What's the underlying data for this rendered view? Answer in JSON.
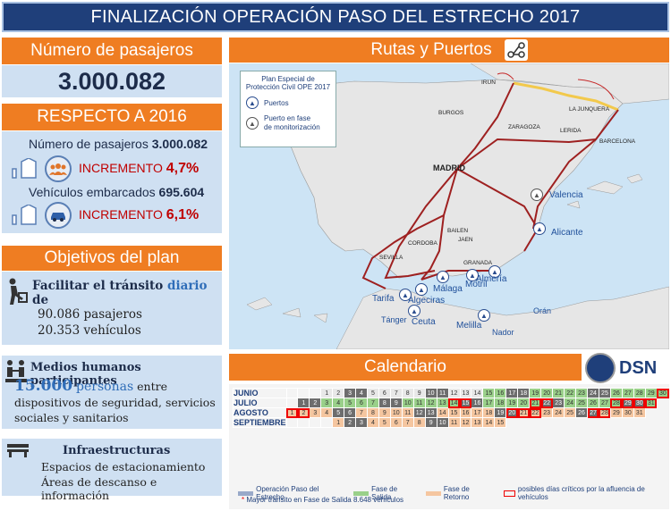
{
  "title": "FINALIZACIÓN OPERACIÓN PASO DEL ESTRECHO 2017",
  "passengers": {
    "header": "Número de pasajeros",
    "value": "3.000.082"
  },
  "respecto": {
    "header": "RESPECTO A 2016",
    "pasajeros_label": "Número de pasajeros",
    "pasajeros_value": "3.000.082",
    "pasajeros_inc_label": "INCREMENTO",
    "pasajeros_inc_value": "4,7%",
    "vehiculos_label": "Vehículos embarcados",
    "vehiculos_value": "695.604",
    "vehiculos_inc_label": "INCREMENTO",
    "vehiculos_inc_value": "6,1%"
  },
  "objetivos": {
    "header": "Objetivos del plan",
    "facilitar_a": "Facilitar el tránsito",
    "facilitar_b": "diario",
    "facilitar_c": "de",
    "line1": "90.086 pasajeros",
    "line2": "20.353 vehículos"
  },
  "medios": {
    "title": "Medios humanos participantes",
    "number": "15.000",
    "word": "personas",
    "rest1": "entre",
    "rest2": "dispositivos de seguridad, servicios",
    "rest3": "sociales y sanitarios"
  },
  "infra": {
    "title": "Infraestructuras",
    "line1": "Espacios de estacionamiento",
    "line2": "Áreas de descanso e información"
  },
  "map": {
    "header": "Rutas y Puertos",
    "legend_title1": "Plan Especial de",
    "legend_title2": "Protección Civil OPE 2017",
    "legend_ports": "Puertos",
    "legend_monitor1": "Puerto en fase",
    "legend_monitor2": "de monitorización",
    "cities": [
      "IRUN",
      "LA JUNQUERA",
      "BURGOS",
      "ZARAGOZA",
      "LERIDA",
      "BARCELONA",
      "MADRID",
      "BAILEN",
      "JAEN",
      "CORDOBA",
      "SEVILLA",
      "GRANADA"
    ],
    "ports": [
      "Valencia",
      "Alicante",
      "Almería",
      "Motril",
      "Málaga",
      "Algeciras",
      "Tarifa",
      "Tánger",
      "Ceuta",
      "Melilla",
      "Nador",
      "Orán"
    ]
  },
  "calendar": {
    "header": "Calendario",
    "logo": "DSN",
    "months": [
      "JUNIO",
      "JULIO",
      "AGOSTO",
      "SEPTIEMBRE"
    ],
    "fase_salida": "FASE DE SALIDA",
    "fase_retorno": "FASE DE RETORNO",
    "legend_ope": "Operación Paso del Estrecho",
    "legend_salida": "Fase de Salida",
    "legend_retorno": "Fase de Retorno",
    "legend_criticos": "posibles días críticos por la afluencia de vehículos",
    "legend_mayor": "Mayor tránsito en Fase de Salida 8.648 vehículos"
  },
  "colors": {
    "title_bg": "#1f3f7a",
    "header_orange": "#ef7d22",
    "pane_blue": "#cfe0f2",
    "increment_red": "#c00000"
  }
}
